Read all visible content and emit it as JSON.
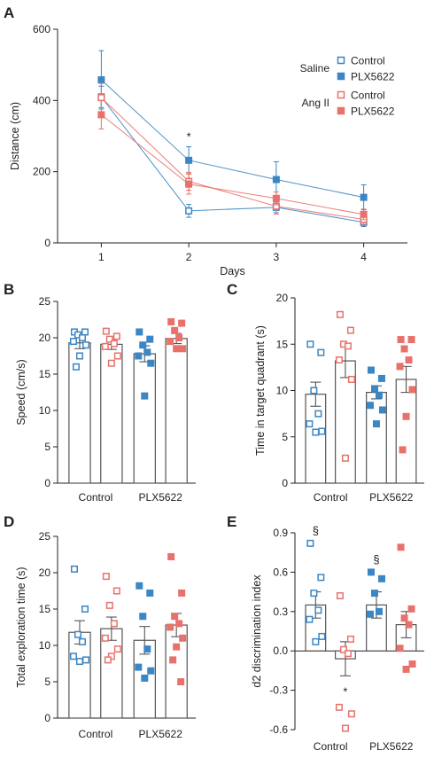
{
  "colors": {
    "saline": "#3b86c4",
    "angii": "#e8726b",
    "bar_stroke": "#555555",
    "axis": "#222222"
  },
  "chart_data": [
    {
      "panel": "A",
      "type": "line",
      "xlabel": "Days",
      "ylabel": "Distance (cm)",
      "x": [
        1,
        2,
        3,
        4
      ],
      "xlim": [
        0.5,
        4.5
      ],
      "ylim": [
        0,
        600
      ],
      "yticks": [
        0,
        200,
        400,
        600
      ],
      "legend": {
        "groups": [
          {
            "name": "Saline",
            "entries": [
              {
                "name": "Control",
                "series": 0
              },
              {
                "name": "PLX5622",
                "series": 1
              }
            ]
          },
          {
            "name": "Ang II",
            "entries": [
              {
                "name": "Control",
                "series": 2
              },
              {
                "name": "PLX5622",
                "series": 3
              }
            ]
          }
        ]
      },
      "series": [
        {
          "group": "Saline",
          "name": "Control",
          "color": "#3b86c4",
          "filled": false,
          "values": [
            410,
            90,
            100,
            58
          ],
          "err": [
            30,
            18,
            15,
            12
          ]
        },
        {
          "group": "Saline",
          "name": "PLX5622",
          "color": "#3b86c4",
          "filled": true,
          "values": [
            458,
            232,
            178,
            128
          ],
          "err": [
            82,
            38,
            50,
            35
          ]
        },
        {
          "group": "Ang II",
          "name": "Control",
          "color": "#e8726b",
          "filled": false,
          "values": [
            408,
            173,
            103,
            66
          ],
          "err": [
            40,
            25,
            22,
            14
          ]
        },
        {
          "group": "Ang II",
          "name": "PLX5622",
          "color": "#e8726b",
          "filled": true,
          "values": [
            360,
            165,
            125,
            80
          ],
          "err": [
            40,
            28,
            18,
            15
          ]
        }
      ],
      "annotations": [
        {
          "text": "*",
          "x": 2,
          "y": 300
        }
      ]
    },
    {
      "panel": "B",
      "type": "bar",
      "ylabel": "Speed (cm/s)",
      "ylim": [
        0,
        25
      ],
      "yticks": [
        0,
        5,
        10,
        15,
        20,
        25
      ],
      "categories": [
        "Control",
        "PLX5622"
      ],
      "bars": [
        {
          "color": "#3b86c4",
          "filled": false,
          "value": 19.3,
          "err": 0.8,
          "points": [
            20.8,
            20.8,
            20.4,
            20.0,
            19.5,
            19.0,
            17.5,
            16.0
          ]
        },
        {
          "color": "#e8726b",
          "filled": false,
          "value": 19.1,
          "err": 0.7,
          "points": [
            20.9,
            20.2,
            19.8,
            19.2,
            18.8,
            17.5,
            16.5
          ]
        },
        {
          "color": "#3b86c4",
          "filled": true,
          "value": 17.8,
          "err": 1.1,
          "points": [
            20.8,
            19.8,
            19.0,
            18.0,
            17.5,
            16.5,
            12.0
          ]
        },
        {
          "color": "#e8726b",
          "filled": true,
          "value": 19.9,
          "err": 0.7,
          "points": [
            22.2,
            22.0,
            21.0,
            20.0,
            19.5,
            18.5,
            18.5
          ]
        }
      ]
    },
    {
      "panel": "C",
      "type": "bar",
      "ylabel": "Time in target quadrant (s)",
      "ylim": [
        0,
        20
      ],
      "yticks": [
        0,
        5,
        10,
        15,
        20
      ],
      "categories": [
        "Control",
        "PLX5622"
      ],
      "bars": [
        {
          "color": "#3b86c4",
          "filled": false,
          "value": 9.6,
          "err": 1.3,
          "points": [
            15.0,
            14.1,
            10.0,
            7.5,
            6.4,
            5.6,
            5.5
          ]
        },
        {
          "color": "#e8726b",
          "filled": false,
          "value": 13.2,
          "err": 1.8,
          "points": [
            18.2,
            16.5,
            15.0,
            14.8,
            13.3,
            11.2,
            2.7
          ]
        },
        {
          "color": "#3b86c4",
          "filled": true,
          "value": 9.8,
          "err": 0.7,
          "points": [
            12.2,
            11.3,
            10.2,
            9.5,
            8.4,
            7.9,
            6.4
          ]
        },
        {
          "color": "#e8726b",
          "filled": true,
          "value": 11.2,
          "err": 1.4,
          "points": [
            15.5,
            15.5,
            14.5,
            13.3,
            12.6,
            10.1,
            7.2,
            3.6
          ]
        }
      ]
    },
    {
      "panel": "D",
      "type": "bar",
      "ylabel": "Total exploration time (s)",
      "ylim": [
        0,
        25
      ],
      "yticks": [
        0,
        5,
        10,
        15,
        20,
        25
      ],
      "categories": [
        "Control",
        "PLX5622"
      ],
      "bars": [
        {
          "color": "#3b86c4",
          "filled": false,
          "value": 11.8,
          "err": 1.6,
          "points": [
            20.5,
            15.0,
            11.5,
            10.5,
            8.5,
            8.0,
            7.8
          ]
        },
        {
          "color": "#e8726b",
          "filled": false,
          "value": 12.3,
          "err": 1.6,
          "points": [
            19.5,
            17.5,
            15.5,
            13.0,
            11.0,
            9.5,
            8.5,
            8.0
          ]
        },
        {
          "color": "#3b86c4",
          "filled": true,
          "value": 10.7,
          "err": 1.9,
          "points": [
            18.2,
            17.2,
            14.0,
            9.5,
            7.0,
            6.5,
            5.5
          ]
        },
        {
          "color": "#e8726b",
          "filled": true,
          "value": 12.8,
          "err": 1.6,
          "points": [
            22.2,
            17.2,
            14.0,
            13.0,
            12.5,
            11.0,
            9.8,
            8.0,
            5.0
          ]
        }
      ]
    },
    {
      "panel": "E",
      "type": "bar",
      "ylabel": "d2 discrimination index",
      "ylim": [
        -0.6,
        0.9
      ],
      "yticks": [
        -0.6,
        -0.3,
        0.0,
        0.3,
        0.6,
        0.9
      ],
      "categories": [
        "Control",
        "PLX5622"
      ],
      "bars": [
        {
          "color": "#3b86c4",
          "filled": false,
          "value": 0.35,
          "err": 0.1,
          "points": [
            0.82,
            0.56,
            0.44,
            0.31,
            0.24,
            0.11,
            0.07
          ],
          "mark": "§"
        },
        {
          "color": "#e8726b",
          "filled": false,
          "value": -0.06,
          "err": 0.13,
          "points": [
            0.42,
            0.09,
            0.01,
            -0.02,
            -0.43,
            -0.48,
            -0.59
          ],
          "mark": "*"
        },
        {
          "color": "#3b86c4",
          "filled": true,
          "value": 0.35,
          "err": 0.1,
          "points": [
            0.6,
            0.55,
            0.44,
            0.3,
            0.28
          ],
          "mark": "§"
        },
        {
          "color": "#e8726b",
          "filled": true,
          "value": 0.2,
          "err": 0.1,
          "points": [
            0.79,
            0.32,
            0.25,
            0.2,
            0.02,
            -0.1,
            -0.14
          ]
        }
      ]
    }
  ]
}
